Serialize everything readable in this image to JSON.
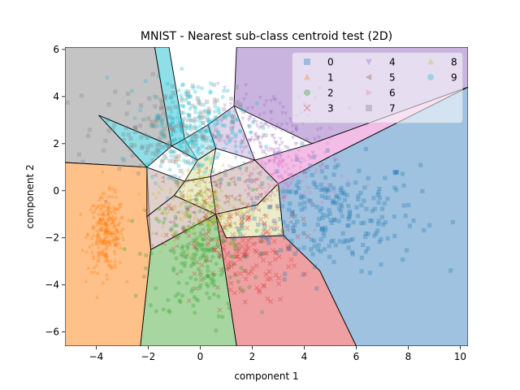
{
  "chart_data": {
    "type": "scatter",
    "title": "MNIST - Nearest sub-class centroid test (2D)",
    "xlabel": "component 1",
    "ylabel": "component 2",
    "xlim": [
      -5.2,
      10.3
    ],
    "ylim": [
      -6.6,
      6.1
    ],
    "x_ticks": [
      -4,
      -2,
      0,
      2,
      4,
      6,
      8,
      10
    ],
    "y_ticks": [
      -6,
      -4,
      -2,
      0,
      2,
      4,
      6
    ],
    "x_tick_labels": [
      "−4",
      "−2",
      "0",
      "2",
      "4",
      "6",
      "8",
      "10"
    ],
    "y_tick_labels": [
      "−6",
      "−4",
      "−2",
      "0",
      "2",
      "4",
      "6"
    ],
    "grid": false,
    "legend_position": "top-right",
    "legend_columns": 3,
    "series": [
      {
        "name": "0",
        "marker": "square",
        "color": "#1f77b4",
        "region_color": "#9ec2df",
        "center": [
          5.0,
          -1.0
        ],
        "spread": [
          1.7,
          1.2
        ],
        "count": 260
      },
      {
        "name": "1",
        "marker": "triangle-up",
        "color": "#ff7f0e",
        "region_color": "#ffc18a",
        "center": [
          -3.6,
          -1.8
        ],
        "spread": [
          0.35,
          0.8
        ],
        "count": 260
      },
      {
        "name": "2",
        "marker": "circle",
        "color": "#2ca02c",
        "region_color": "#a8d6a0",
        "center": [
          0.0,
          -2.8
        ],
        "spread": [
          1.0,
          1.4
        ],
        "count": 200
      },
      {
        "name": "3",
        "marker": "x",
        "color": "#d62728",
        "region_color": "#eea0a2",
        "center": [
          1.3,
          -2.4
        ],
        "spread": [
          1.2,
          1.2
        ],
        "count": 180
      },
      {
        "name": "4",
        "marker": "triangle-down",
        "color": "#9467bd",
        "region_color": "#c9b3df",
        "center": [
          2.6,
          2.3
        ],
        "spread": [
          1.2,
          1.0
        ],
        "count": 170
      },
      {
        "name": "5",
        "marker": "triangle-left",
        "color": "#8c564b",
        "region_color": "#c7aaa4",
        "center": [
          0.5,
          -0.6
        ],
        "spread": [
          1.1,
          1.0
        ],
        "count": 150
      },
      {
        "name": "6",
        "marker": "triangle-right",
        "color": "#e377c2",
        "region_color": "#f2bde6",
        "center": [
          3.2,
          0.6
        ],
        "spread": [
          1.1,
          0.9
        ],
        "count": 160
      },
      {
        "name": "7",
        "marker": "square",
        "color": "#7f7f7f",
        "region_color": "#c4c4c4",
        "center": [
          -1.2,
          2.6
        ],
        "spread": [
          1.3,
          0.9
        ],
        "count": 200
      },
      {
        "name": "8",
        "marker": "triangle-up",
        "color": "#bcbd22",
        "region_color": "#dcdd9a",
        "center": [
          0.0,
          -0.6
        ],
        "spread": [
          0.9,
          0.9
        ],
        "count": 180
      },
      {
        "name": "9",
        "marker": "circle",
        "color": "#17becf",
        "region_color": "#8fdfe9",
        "center": [
          -0.2,
          2.7
        ],
        "spread": [
          1.0,
          1.0
        ],
        "count": 240
      }
    ],
    "decision_regions": [
      {
        "class": "7",
        "polygon": [
          [
            -5.2,
            6.1
          ],
          [
            -1.75,
            6.1
          ],
          [
            -1.1,
            1.9
          ],
          [
            -3.9,
            3.2
          ],
          [
            -2.05,
            1.0
          ],
          [
            -5.2,
            1.2
          ]
        ]
      },
      {
        "class": "9",
        "polygon": [
          [
            -1.75,
            6.1
          ],
          [
            -1.2,
            6.1
          ],
          [
            -0.6,
            2.2
          ],
          [
            -0.1,
            1.3
          ],
          [
            -1.1,
            1.9
          ]
        ]
      },
      {
        "class": "9",
        "polygon": [
          [
            -3.9,
            3.2
          ],
          [
            -1.1,
            1.9
          ],
          [
            -2.05,
            1.0
          ]
        ]
      },
      {
        "class": "4",
        "polygon": [
          [
            1.4,
            6.1
          ],
          [
            10.3,
            6.1
          ],
          [
            10.3,
            4.4
          ],
          [
            4.3,
            2.0
          ],
          [
            1.3,
            3.6
          ]
        ]
      },
      {
        "class": "6",
        "polygon": [
          [
            4.3,
            2.0
          ],
          [
            10.3,
            4.4
          ],
          [
            4.9,
            1.4
          ],
          [
            3.0,
            0.3
          ],
          [
            2.1,
            1.3
          ]
        ]
      },
      {
        "class": "0",
        "polygon": [
          [
            10.3,
            4.4
          ],
          [
            10.3,
            -6.6
          ],
          [
            6.0,
            -6.6
          ],
          [
            4.6,
            -3.4
          ],
          [
            3.2,
            -1.9
          ],
          [
            3.0,
            0.3
          ],
          [
            4.9,
            1.4
          ]
        ]
      },
      {
        "class": "3",
        "polygon": [
          [
            1.4,
            -6.6
          ],
          [
            6.0,
            -6.6
          ],
          [
            4.6,
            -3.4
          ],
          [
            3.2,
            -1.9
          ],
          [
            1.0,
            -2.0
          ],
          [
            0.6,
            -1.0
          ],
          [
            0.8,
            -2.3
          ]
        ]
      },
      {
        "class": "2",
        "polygon": [
          [
            -2.3,
            -6.6
          ],
          [
            1.4,
            -6.6
          ],
          [
            0.8,
            -2.3
          ],
          [
            0.6,
            -1.0
          ],
          [
            -1.9,
            -2.5
          ]
        ]
      },
      {
        "class": "1",
        "polygon": [
          [
            -5.2,
            1.2
          ],
          [
            -2.05,
            1.0
          ],
          [
            -1.9,
            -2.5
          ],
          [
            -2.3,
            -6.6
          ],
          [
            -5.2,
            -6.6
          ]
        ]
      }
    ],
    "centroid_cells": [
      {
        "class": "9",
        "polygon": [
          [
            -1.1,
            1.9
          ],
          [
            -0.1,
            1.3
          ],
          [
            0.6,
            1.8
          ],
          [
            0.3,
            2.8
          ],
          [
            -0.6,
            2.2
          ]
        ]
      },
      {
        "class": "4",
        "polygon": [
          [
            0.6,
            1.8
          ],
          [
            2.1,
            1.3
          ],
          [
            1.3,
            3.6
          ],
          [
            0.3,
            2.8
          ]
        ]
      },
      {
        "class": "8",
        "polygon": [
          [
            -0.1,
            1.3
          ],
          [
            0.6,
            1.8
          ],
          [
            0.4,
            0.6
          ],
          [
            -0.6,
            0.4
          ]
        ]
      },
      {
        "class": "5",
        "polygon": [
          [
            -2.05,
            1.0
          ],
          [
            -0.6,
            0.4
          ],
          [
            -1.0,
            -0.2
          ],
          [
            -2.05,
            -1.1
          ]
        ]
      },
      {
        "class": "8",
        "polygon": [
          [
            -0.6,
            0.4
          ],
          [
            0.4,
            0.6
          ],
          [
            0.6,
            -1.0
          ],
          [
            -1.0,
            -0.2
          ]
        ]
      },
      {
        "class": "5",
        "polygon": [
          [
            0.4,
            0.6
          ],
          [
            2.1,
            1.3
          ],
          [
            3.0,
            0.3
          ],
          [
            2.2,
            -0.6
          ],
          [
            0.6,
            -1.0
          ]
        ]
      },
      {
        "class": "8",
        "polygon": [
          [
            0.6,
            -1.0
          ],
          [
            2.2,
            -0.6
          ],
          [
            3.0,
            0.3
          ],
          [
            3.2,
            -1.9
          ],
          [
            1.0,
            -2.0
          ]
        ]
      },
      {
        "class": "5",
        "polygon": [
          [
            -2.05,
            -1.1
          ],
          [
            -1.0,
            -0.2
          ],
          [
            0.6,
            -1.0
          ],
          [
            -1.9,
            -2.5
          ]
        ]
      }
    ]
  }
}
